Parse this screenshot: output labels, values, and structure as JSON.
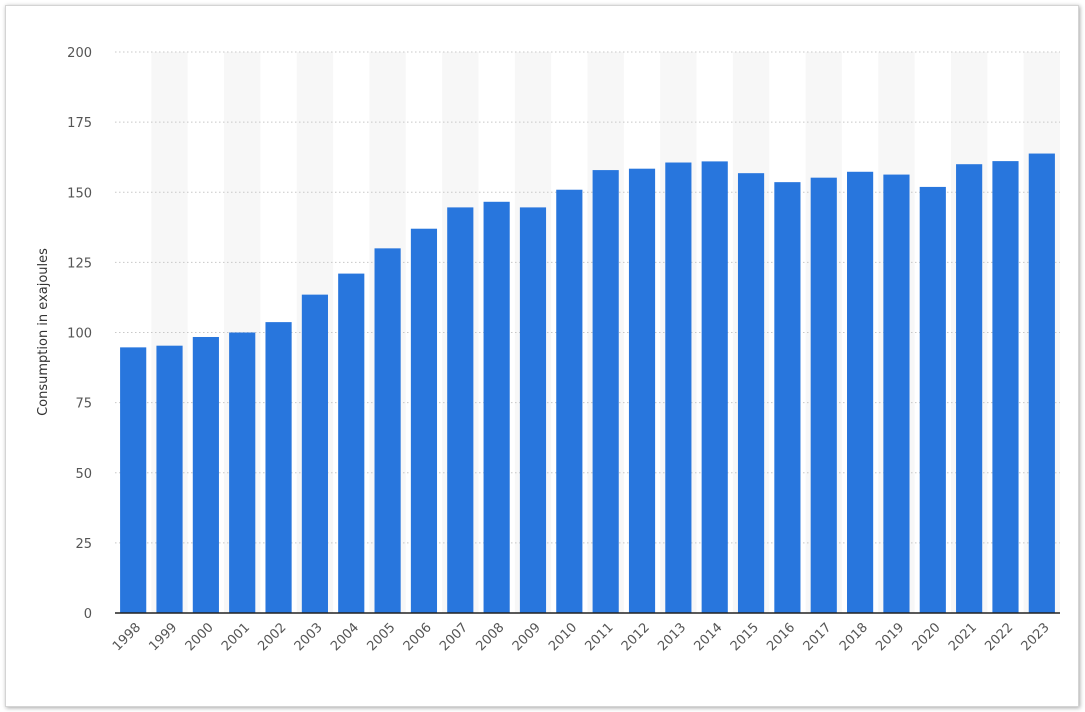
{
  "chart_data": {
    "type": "bar",
    "categories": [
      "1998",
      "1999",
      "2000",
      "2001",
      "2002",
      "2003",
      "2004",
      "2005",
      "2006",
      "2007",
      "2008",
      "2009",
      "2010",
      "2011",
      "2012",
      "2013",
      "2014",
      "2015",
      "2016",
      "2017",
      "2018",
      "2019",
      "2020",
      "2021",
      "2022",
      "2023"
    ],
    "values": [
      94.7,
      95.3,
      98.4,
      100.0,
      103.7,
      113.5,
      121.0,
      130.0,
      137.0,
      144.6,
      146.6,
      144.6,
      150.9,
      157.9,
      158.4,
      160.6,
      161.0,
      156.8,
      153.6,
      155.2,
      157.3,
      156.3,
      151.9,
      160.0,
      161.1,
      163.8
    ],
    "title": "",
    "xlabel": "",
    "ylabel": "Consumption in exajoules",
    "ylim": [
      0,
      200
    ],
    "yticks": [
      0,
      25,
      50,
      75,
      100,
      125,
      150,
      175,
      200
    ],
    "grid": true,
    "colors": {
      "bar": "#2876dd",
      "band": "#f7f7f7",
      "gridline": "#c8c8c8",
      "axis": "#222222"
    }
  }
}
